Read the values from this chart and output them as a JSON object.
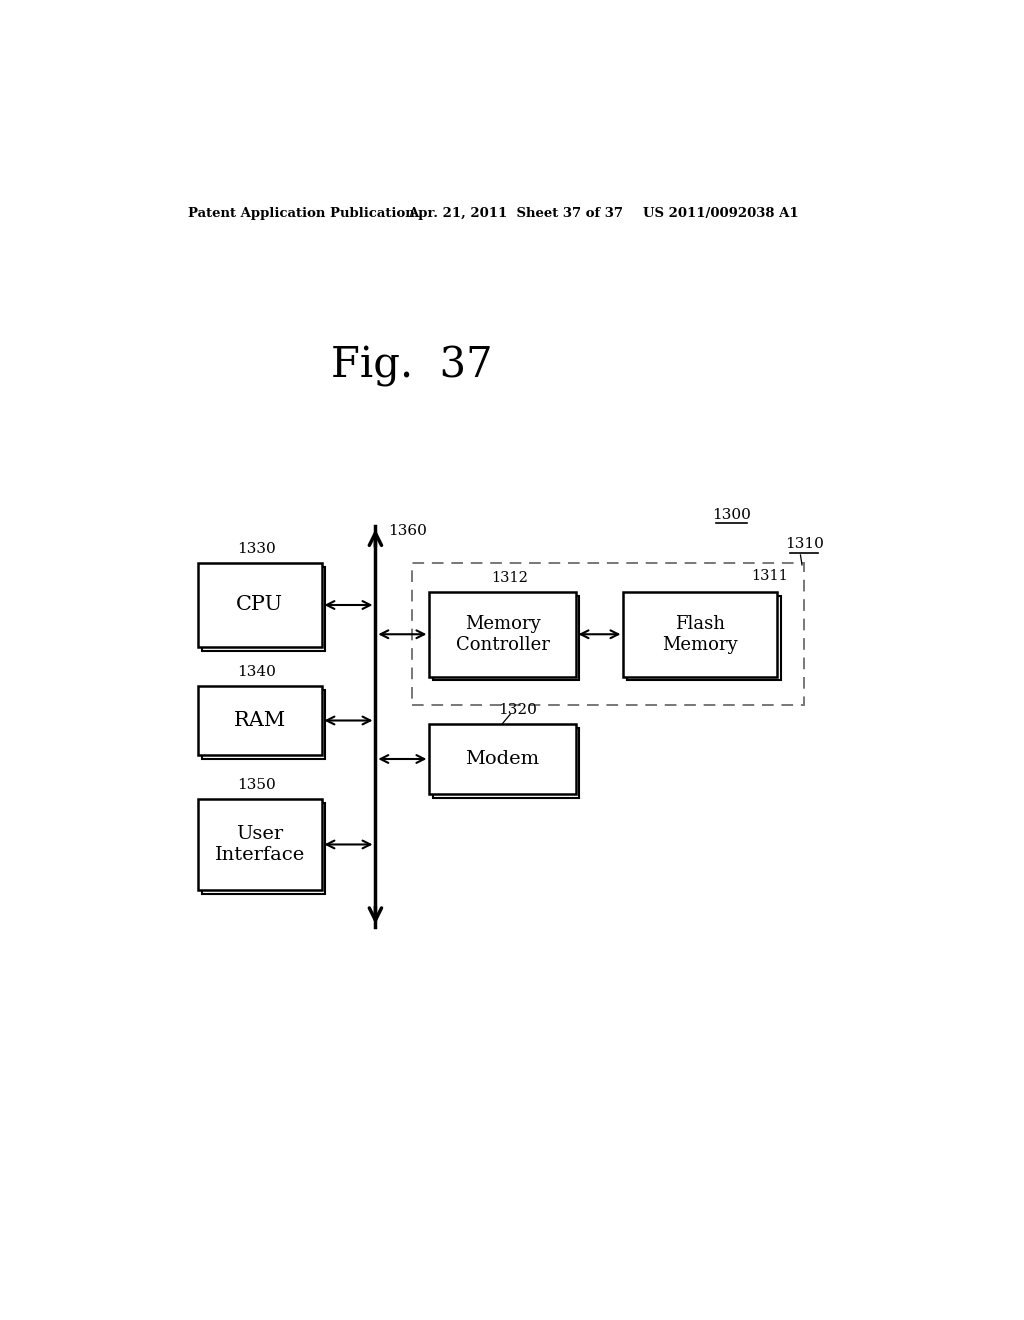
{
  "background_color": "#ffffff",
  "header_left": "Patent Application Publication",
  "header_center": "Apr. 21, 2011  Sheet 37 of 37",
  "header_right": "US 2011/0092038 A1",
  "fig_title": "Fig.  37",
  "label_1300": "1300",
  "label_1360": "1360",
  "label_1330": "1330",
  "label_1340": "1340",
  "label_1350": "1350",
  "label_1310": "1310",
  "label_1311": "1311",
  "label_1312": "1312",
  "label_1320": "1320",
  "box_cpu_label": "CPU",
  "box_ram_label": "RAM",
  "box_ui_label": "User\nInterface",
  "box_mc_label": "Memory\nController",
  "box_fm_label": "Flash\nMemory",
  "box_modem_label": "Modem"
}
